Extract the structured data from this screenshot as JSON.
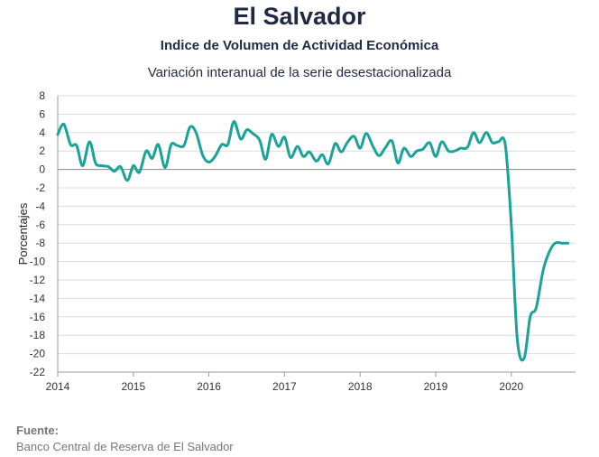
{
  "header": {
    "title": "El Salvador",
    "subtitle": "Indice de Volumen de  Actividad Económica",
    "subtitle2": "Variación interanual de la serie desestacionalizada"
  },
  "source": {
    "label": "Fuente:",
    "text": "Banco Central de Reserva de El Salvador"
  },
  "chart_data": {
    "type": "line",
    "title": "El Salvador",
    "xlabel": "",
    "ylabel": "Porcentajes",
    "xlim": [
      2014,
      2020.85
    ],
    "ylim": [
      -22,
      8
    ],
    "yticks": [
      8,
      6,
      4,
      2,
      0,
      -2,
      -4,
      -6,
      -8,
      -10,
      -12,
      -14,
      -16,
      -18,
      -20,
      -22
    ],
    "xticks": [
      2014,
      2015,
      2016,
      2017,
      2018,
      2019,
      2020
    ],
    "grid": true,
    "line_color": "#1aa398",
    "series": [
      {
        "name": "",
        "x": [
          2014.0,
          2014.08,
          2014.17,
          2014.25,
          2014.33,
          2014.42,
          2014.5,
          2014.58,
          2014.67,
          2014.75,
          2014.83,
          2014.92,
          2015.0,
          2015.08,
          2015.17,
          2015.25,
          2015.33,
          2015.42,
          2015.5,
          2015.58,
          2015.67,
          2015.75,
          2015.83,
          2015.92,
          2016.0,
          2016.08,
          2016.17,
          2016.25,
          2016.33,
          2016.42,
          2016.5,
          2016.58,
          2016.67,
          2016.75,
          2016.83,
          2016.92,
          2017.0,
          2017.08,
          2017.17,
          2017.25,
          2017.33,
          2017.42,
          2017.5,
          2017.58,
          2017.67,
          2017.75,
          2017.83,
          2017.92,
          2018.0,
          2018.08,
          2018.17,
          2018.25,
          2018.33,
          2018.42,
          2018.5,
          2018.58,
          2018.67,
          2018.75,
          2018.83,
          2018.92,
          2019.0,
          2019.08,
          2019.17,
          2019.25,
          2019.33,
          2019.42,
          2019.5,
          2019.58,
          2019.67,
          2019.75,
          2019.83,
          2019.92,
          2020.0,
          2020.08,
          2020.17,
          2020.25,
          2020.33,
          2020.42,
          2020.5,
          2020.58,
          2020.67,
          2020.75
        ],
        "y": [
          3.8,
          4.9,
          2.7,
          2.6,
          0.4,
          3.0,
          0.7,
          0.4,
          0.3,
          -0.2,
          0.3,
          -1.2,
          0.4,
          -0.3,
          2.0,
          1.2,
          2.7,
          0.2,
          2.7,
          2.6,
          2.6,
          4.6,
          4.0,
          1.5,
          0.8,
          1.4,
          2.7,
          2.7,
          5.2,
          3.3,
          4.3,
          3.9,
          3.2,
          1.1,
          3.8,
          2.5,
          3.5,
          1.3,
          2.5,
          1.4,
          1.9,
          0.9,
          1.6,
          0.6,
          2.8,
          1.9,
          2.9,
          3.6,
          2.3,
          3.9,
          2.5,
          1.5,
          2.3,
          3.1,
          0.7,
          2.3,
          1.4,
          2.0,
          2.2,
          2.9,
          1.4,
          3.0,
          2.0,
          2.0,
          2.3,
          2.4,
          4.0,
          2.9,
          4.0,
          2.9,
          3.0,
          2.7,
          -6.0,
          -18.5,
          -20.5,
          -16.0,
          -15.0,
          -11.0,
          -9.0,
          -8.0,
          -8.0,
          -8.0
        ]
      }
    ]
  }
}
